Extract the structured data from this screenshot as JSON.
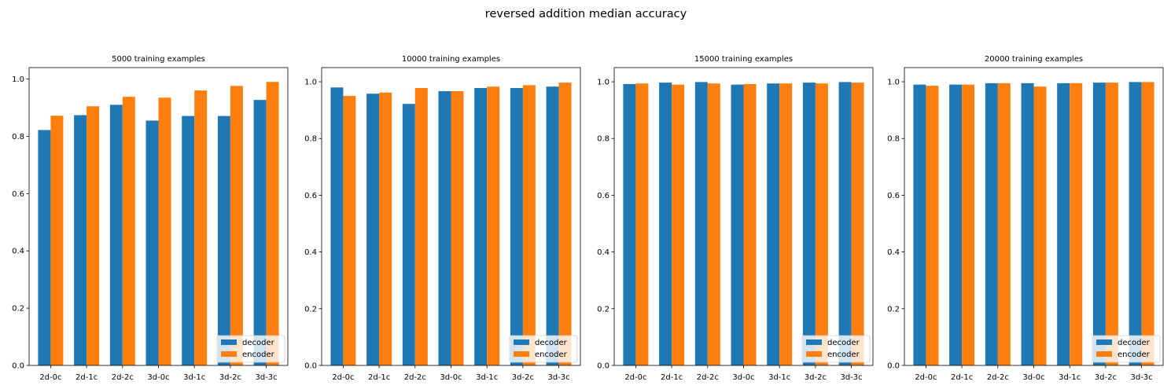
{
  "figure": {
    "suptitle": "reversed addition median accuracy"
  },
  "colors": {
    "decoder": "#1f77b4",
    "encoder": "#ff7f0e"
  },
  "chart_data": [
    {
      "type": "bar",
      "title": "5000 training examples",
      "categories": [
        "2d-0c",
        "2d-1c",
        "2d-2c",
        "3d-0c",
        "3d-1c",
        "3d-2c",
        "3d-3c"
      ],
      "series": [
        {
          "name": "decoder",
          "values": [
            0.822,
            0.874,
            0.91,
            0.855,
            0.871,
            0.871,
            0.927
          ]
        },
        {
          "name": "encoder",
          "values": [
            0.872,
            0.905,
            0.938,
            0.935,
            0.96,
            0.976,
            0.99
          ]
        }
      ],
      "ylim": [
        0,
        1.04
      ],
      "yticks": [
        "0.0",
        "0.2",
        "0.4",
        "0.6",
        "0.8",
        "1.0"
      ],
      "legend": "lower right",
      "grid": false
    },
    {
      "type": "bar",
      "title": "10000 training examples",
      "categories": [
        "2d-0c",
        "2d-1c",
        "2d-2c",
        "3d-0c",
        "3d-1c",
        "3d-2c",
        "3d-3c"
      ],
      "series": [
        {
          "name": "decoder",
          "values": [
            0.98,
            0.958,
            0.922,
            0.967,
            0.978,
            0.978,
            0.983
          ]
        },
        {
          "name": "encoder",
          "values": [
            0.95,
            0.962,
            0.978,
            0.967,
            0.983,
            0.988,
            0.997
          ]
        }
      ],
      "ylim": [
        0,
        1.05
      ],
      "yticks": [
        "0.0",
        "0.2",
        "0.4",
        "0.6",
        "0.8",
        "1.0"
      ],
      "legend": "lower right",
      "grid": false
    },
    {
      "type": "bar",
      "title": "15000 training examples",
      "categories": [
        "2d-0c",
        "2d-1c",
        "2d-2c",
        "3d-0c",
        "3d-1c",
        "3d-2c",
        "3d-3c"
      ],
      "series": [
        {
          "name": "decoder",
          "values": [
            0.992,
            0.997,
            0.999,
            0.99,
            0.994,
            0.997,
            0.999
          ]
        },
        {
          "name": "encoder",
          "values": [
            0.994,
            0.99,
            0.994,
            0.992,
            0.994,
            0.994,
            0.997
          ]
        }
      ],
      "ylim": [
        0,
        1.05
      ],
      "yticks": [
        "0.0",
        "0.2",
        "0.4",
        "0.6",
        "0.8",
        "1.0"
      ],
      "legend": "lower right",
      "grid": false
    },
    {
      "type": "bar",
      "title": "20000 training examples",
      "categories": [
        "2d-0c",
        "2d-1c",
        "2d-2c",
        "3d-0c",
        "3d-1c",
        "3d-2c",
        "3d-3c"
      ],
      "series": [
        {
          "name": "decoder",
          "values": [
            0.99,
            0.99,
            0.995,
            0.995,
            0.995,
            0.997,
            0.999
          ]
        },
        {
          "name": "encoder",
          "values": [
            0.986,
            0.99,
            0.995,
            0.983,
            0.995,
            0.997,
            0.999
          ]
        }
      ],
      "ylim": [
        0,
        1.05
      ],
      "yticks": [
        "0.0",
        "0.2",
        "0.4",
        "0.6",
        "0.8",
        "1.0"
      ],
      "legend": "lower right",
      "grid": false
    }
  ]
}
